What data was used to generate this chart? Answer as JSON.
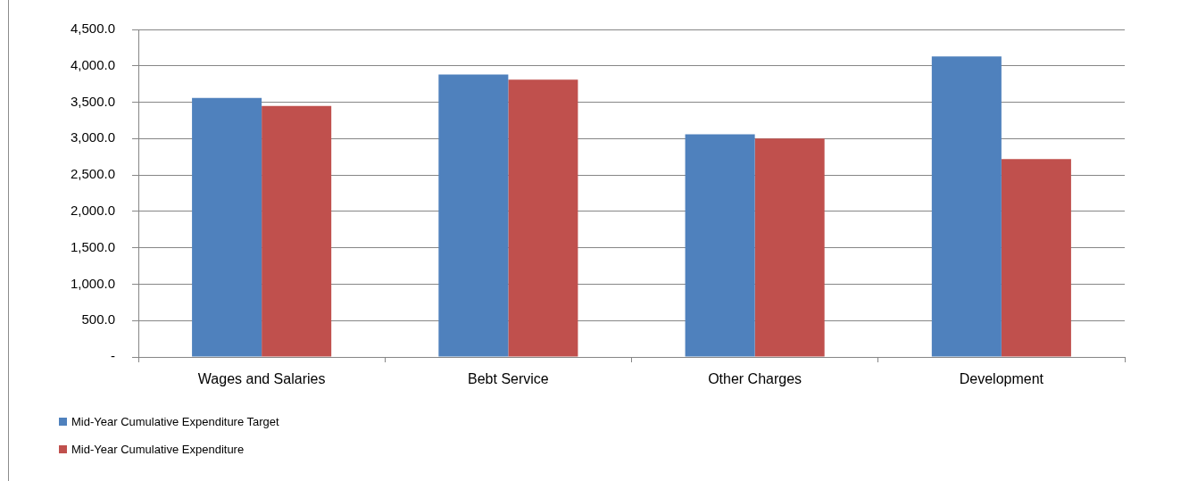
{
  "chart_data": {
    "type": "bar",
    "categories": [
      "Wages and Salaries",
      "Bebt Service",
      "Other Charges",
      "Development"
    ],
    "series": [
      {
        "name": "Mid-Year Cumulative Expenditure Target",
        "color": "#4f81bd",
        "values": [
          3560,
          3880,
          3060,
          4130
        ]
      },
      {
        "name": "Mid-Year Cumulative Expenditure",
        "color": "#c0504d",
        "values": [
          3450,
          3810,
          3000,
          2720
        ]
      }
    ],
    "ylim": [
      0,
      4500
    ],
    "yticks": [
      {
        "value": 0,
        "label": "-"
      },
      {
        "value": 500,
        "label": "500.0"
      },
      {
        "value": 1000,
        "label": "1,000.0"
      },
      {
        "value": 1500,
        "label": "1,500.0"
      },
      {
        "value": 2000,
        "label": "2,000.0"
      },
      {
        "value": 2500,
        "label": "2,500.0"
      },
      {
        "value": 3000,
        "label": "3,000.0"
      },
      {
        "value": 3500,
        "label": "3,500.0"
      },
      {
        "value": 4000,
        "label": "4,000.0"
      },
      {
        "value": 4500,
        "label": "4,500.0"
      }
    ],
    "grid": "y",
    "legend": "bottom left"
  }
}
